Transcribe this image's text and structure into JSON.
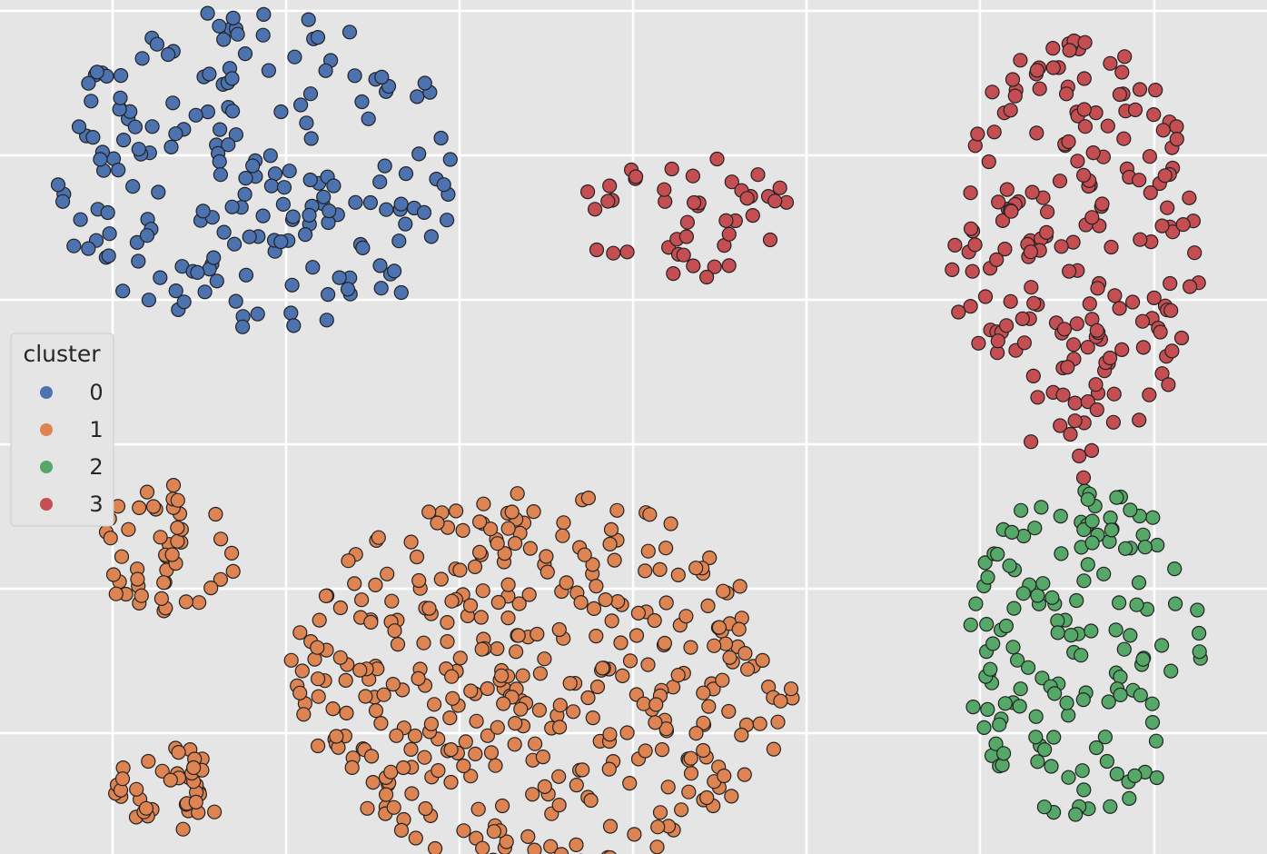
{
  "chart_data": {
    "type": "scatter",
    "title": "",
    "xlabel": "",
    "ylabel": "",
    "xlim": [
      0,
      14.5
    ],
    "ylim": [
      0,
      5.9
    ],
    "grid": true,
    "legend": {
      "title": "cluster",
      "placement": "center-left"
    },
    "series": [
      {
        "name": "0",
        "color": "#4c72b0",
        "blob": {
          "cx": 3.0,
          "cy": 4.7,
          "rx": 2.45,
          "ry": 1.15,
          "n": 200
        }
      },
      {
        "name": "1",
        "color": "#dd8452",
        "blob": {
          "cx": 6.2,
          "cy": 1.2,
          "rx": 2.9,
          "ry": 1.3,
          "n": 390,
          "extra": [
            {
              "cx": 1.9,
              "cy": 2.1,
              "rx": 0.85,
              "ry": 0.45,
              "n": 48
            },
            {
              "cx": 1.9,
              "cy": 0.45,
              "rx": 0.7,
              "ry": 0.3,
              "n": 40
            }
          ]
        }
      },
      {
        "name": "2",
        "color": "#55a868",
        "blob": {
          "cx": 12.4,
          "cy": 1.4,
          "rx": 1.35,
          "ry": 1.15,
          "n": 145
        }
      },
      {
        "name": "3",
        "color": "#c44e52",
        "blob": {
          "cx": 12.3,
          "cy": 4.2,
          "rx": 1.45,
          "ry": 1.45,
          "n": 200,
          "extra": [
            {
              "cx": 7.9,
              "cy": 4.4,
              "rx": 1.3,
              "ry": 0.45,
              "n": 45
            }
          ]
        }
      }
    ]
  }
}
